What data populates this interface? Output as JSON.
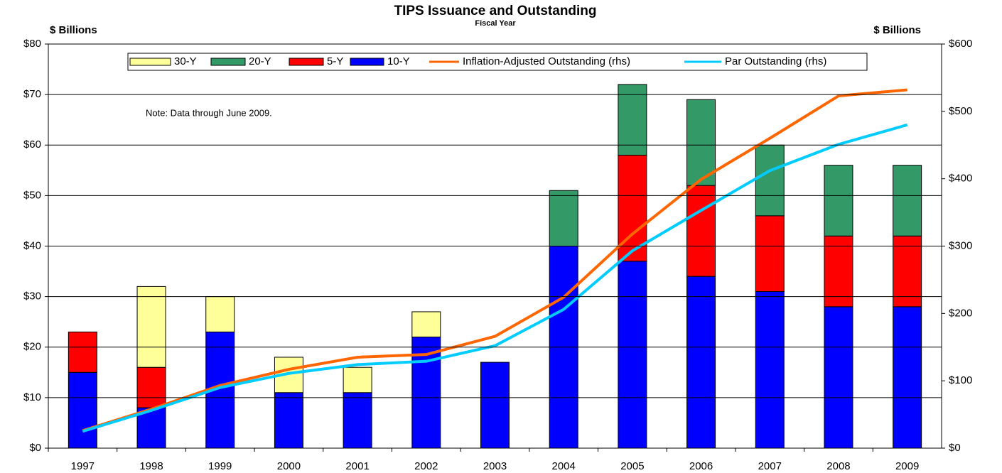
{
  "chart_data": {
    "type": "bar",
    "title": "TIPS Issuance and Outstanding",
    "subtitle": "Fiscal Year",
    "y_label": "$ Billions",
    "y2_label": "$ Billions",
    "annotation": "Note: Data through June 2009.",
    "stacked": true,
    "categories": [
      "1997",
      "1998",
      "1999",
      "2000",
      "2001",
      "2002",
      "2003",
      "2004",
      "2005",
      "2006",
      "2007",
      "2008",
      "2009"
    ],
    "series": [
      {
        "name": "30-Y",
        "type": "bar",
        "color": "#ffff99",
        "values": [
          0,
          16,
          7,
          7,
          5,
          5,
          0,
          0,
          0,
          0,
          0,
          0,
          0
        ]
      },
      {
        "name": "20-Y",
        "type": "bar",
        "color": "#339966",
        "values": [
          0,
          0,
          0,
          0,
          0,
          0,
          0,
          11,
          14,
          17,
          14,
          14,
          14
        ]
      },
      {
        "name": "5-Y",
        "type": "bar",
        "color": "#ff0000",
        "values": [
          8,
          8,
          0,
          0,
          0,
          0,
          0,
          0,
          21,
          18,
          15,
          14,
          14
        ]
      },
      {
        "name": "10-Y",
        "type": "bar",
        "color": "#0000ff",
        "values": [
          15,
          8,
          23,
          11,
          11,
          22,
          17,
          40,
          37,
          34,
          31,
          28,
          28
        ]
      },
      {
        "name": "Inflation-Adjusted Outstanding (rhs)",
        "type": "line",
        "axis": "y2",
        "color": "#ff6600",
        "values": [
          26,
          58,
          93,
          117,
          135,
          139,
          166,
          224,
          318,
          399,
          460,
          523,
          532
        ]
      },
      {
        "name": "Par Outstanding (rhs)",
        "type": "line",
        "axis": "y2",
        "color": "#00ccff",
        "values": [
          25,
          56,
          90,
          111,
          124,
          129,
          152,
          206,
          293,
          353,
          412,
          451,
          480
        ]
      }
    ],
    "ylim": [
      0,
      80
    ],
    "yticks": [
      {
        "value": 0,
        "label": "$0"
      },
      {
        "value": 10,
        "label": "$10"
      },
      {
        "value": 20,
        "label": "$20"
      },
      {
        "value": 30,
        "label": "$30"
      },
      {
        "value": 40,
        "label": "$40"
      },
      {
        "value": 50,
        "label": "$50"
      },
      {
        "value": 60,
        "label": "$60"
      },
      {
        "value": 70,
        "label": "$70"
      },
      {
        "value": 80,
        "label": "$80"
      }
    ],
    "y2lim": [
      0,
      600
    ],
    "y2ticks": [
      {
        "value": 0,
        "label": "$0"
      },
      {
        "value": 100,
        "label": "$100"
      },
      {
        "value": 200,
        "label": "$200"
      },
      {
        "value": 300,
        "label": "$300"
      },
      {
        "value": 400,
        "label": "$400"
      },
      {
        "value": 500,
        "label": "$500"
      },
      {
        "value": 600,
        "label": "$600"
      }
    ],
    "grid": true,
    "legend": "top"
  }
}
